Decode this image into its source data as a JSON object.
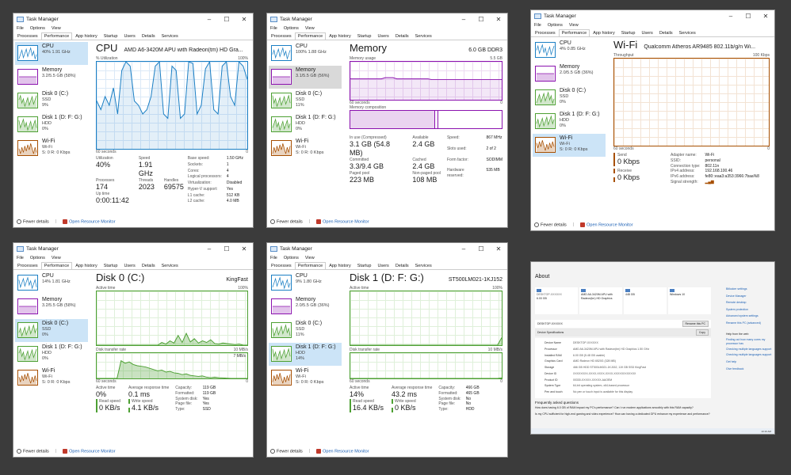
{
  "common": {
    "title": "Task Manager",
    "menu": [
      "File",
      "Options",
      "View"
    ],
    "tabs": [
      "Processes",
      "Performance",
      "App history",
      "Startup",
      "Users",
      "Details",
      "Services"
    ],
    "fewer_details": "Fewer details",
    "open_rm": "Open Resource Monitor",
    "minimize": "–",
    "maximize": "☐",
    "close": "✕"
  },
  "windows": {
    "cpu": {
      "sidebar": [
        {
          "name": "CPU",
          "d1": "40%  1.91 GHz",
          "d2": ""
        },
        {
          "name": "Memory",
          "d1": "3.2/5.5 GB (58%)",
          "d2": ""
        },
        {
          "name": "Disk 0 (C:)",
          "d1": "SSD",
          "d2": "9%"
        },
        {
          "name": "Disk 1 (D: F: G:)",
          "d1": "HDD",
          "d2": "0%"
        },
        {
          "name": "Wi-Fi",
          "d1": "Wi-Fi",
          "d2": "S: 0  R: 0 Kbps"
        }
      ],
      "heading": "CPU",
      "subtitle": "AMD A6-3420M APU with Radeon(tm) HD Gra...",
      "graph_top_left": "% Utilization",
      "graph_top_right": "100%",
      "graph_bottom_left": "60 seconds",
      "graph_bottom_right": "0",
      "stats": [
        {
          "l": "Utilization",
          "v": "40%"
        },
        {
          "l": "Speed",
          "v": "1.91 GHz"
        },
        {
          "l": "Processes",
          "v": "174"
        },
        {
          "l": "Threads",
          "v": "2023"
        },
        {
          "l": "Handles",
          "v": "69575"
        },
        {
          "l": "Up time",
          "v": "0:00:11:42"
        }
      ],
      "details": [
        [
          "Base speed:",
          "1.50 GHz"
        ],
        [
          "Sockets:",
          "1"
        ],
        [
          "Cores:",
          "4"
        ],
        [
          "Logical processors:",
          "4"
        ],
        [
          "Virtualization:",
          "Disabled"
        ],
        [
          "Hyper-V support:",
          "Yes"
        ],
        [
          "L1 cache:",
          "512 KB"
        ],
        [
          "L2 cache:",
          "4.0 MB"
        ]
      ]
    },
    "mem": {
      "sidebar": [
        {
          "name": "CPU",
          "d1": "100%  1.88 GHz",
          "d2": ""
        },
        {
          "name": "Memory",
          "d1": "3.1/5.5 GB (56%)",
          "d2": ""
        },
        {
          "name": "Disk 0 (C:)",
          "d1": "SSD",
          "d2": "11%"
        },
        {
          "name": "Disk 1 (D: F: G:)",
          "d1": "HDD",
          "d2": "0%"
        },
        {
          "name": "Wi-Fi",
          "d1": "Wi-Fi",
          "d2": "S: 0  R: 0 Kbps"
        }
      ],
      "heading": "Memory",
      "subtitle": "6.0 GB DDR3",
      "usage_label": "Memory usage",
      "usage_max": "5.5 GB",
      "seconds": "60 seconds",
      "zero": "0",
      "composition": "Memory composition",
      "stats": [
        {
          "l": "In use (Compressed)",
          "v": "3.1 GB (54.8 MB)"
        },
        {
          "l": "Available",
          "v": "2.4 GB"
        },
        {
          "l": "Committed",
          "v": "3.3/9.4 GB"
        },
        {
          "l": "Cached",
          "v": "2.4 GB"
        },
        {
          "l": "Paged pool",
          "v": "223 MB"
        },
        {
          "l": "Non-paged pool",
          "v": "108 MB"
        }
      ],
      "details": [
        [
          "Speed:",
          "867 MHz"
        ],
        [
          "Slots used:",
          "2 of 2"
        ],
        [
          "Form factor:",
          "SODIMM"
        ],
        [
          "Hardware reserved:",
          "535 MB"
        ]
      ]
    },
    "wifi": {
      "sidebar": [
        {
          "name": "CPU",
          "d1": "4%  0.85 GHz",
          "d2": ""
        },
        {
          "name": "Memory",
          "d1": "2.0/5.5 GB (36%)",
          "d2": ""
        },
        {
          "name": "Disk 0 (C:)",
          "d1": "SSD",
          "d2": "0%"
        },
        {
          "name": "Disk 1 (D: F: G:)",
          "d1": "HDD",
          "d2": "0%"
        },
        {
          "name": "Wi-Fi",
          "d1": "Wi-Fi",
          "d2": "S: 0  R: 0 Kbps"
        }
      ],
      "heading": "Wi-Fi",
      "subtitle": "Qualcomm Atheros AR9485 802.11b/g/n Wi...",
      "graph_top_left": "Throughput",
      "graph_top_right": "100 Kbps",
      "seconds": "60 seconds",
      "zero": "0",
      "send_label": "Send",
      "send_value": "0 Kbps",
      "recv_label": "Receive",
      "recv_value": "0 Kbps",
      "details": [
        [
          "Adapter name:",
          "Wi-Fi"
        ],
        [
          "SSID:",
          "personal"
        ],
        [
          "Connection type:",
          "802.11n"
        ],
        [
          "IPv4 address:",
          "192.168.100.46"
        ],
        [
          "IPv6 address:",
          "fe80::eaa3:a353:3966:7baa%8"
        ],
        [
          "Signal strength:",
          "▂▄▆"
        ]
      ]
    },
    "disk0": {
      "sidebar": [
        {
          "name": "CPU",
          "d1": "14%  1.81 GHz",
          "d2": ""
        },
        {
          "name": "Memory",
          "d1": "3.2/5.5 GB (58%)",
          "d2": ""
        },
        {
          "name": "Disk 0 (C:)",
          "d1": "SSD",
          "d2": "0%"
        },
        {
          "name": "Disk 1 (D: F: G:)",
          "d1": "HDD",
          "d2": "0%"
        },
        {
          "name": "Wi-Fi",
          "d1": "Wi-Fi",
          "d2": "S: 0  R: 0 Kbps"
        }
      ],
      "heading": "Disk 0 (C:)",
      "subtitle": "KingFast",
      "active_label": "Active time",
      "active_max": "100%",
      "rate_label": "Disk transfer rate",
      "rate_max": "10 MB/s",
      "rate_mark": "7 MB/s",
      "seconds": "60 seconds",
      "zero": "0",
      "stats": [
        {
          "l": "Active time",
          "v": "0%"
        },
        {
          "l": "Average response time",
          "v": "0.1 ms"
        },
        {
          "l": "Read speed",
          "v": "0 KB/s"
        },
        {
          "l": "Write speed",
          "v": "4.1 KB/s"
        }
      ],
      "details": [
        [
          "Capacity:",
          "119 GB"
        ],
        [
          "Formatted:",
          "119 GB"
        ],
        [
          "System disk:",
          "Yes"
        ],
        [
          "Page file:",
          "Yes"
        ],
        [
          "Type:",
          "SSD"
        ]
      ]
    },
    "disk1": {
      "sidebar": [
        {
          "name": "CPU",
          "d1": "9%  1.80 GHz",
          "d2": ""
        },
        {
          "name": "Memory",
          "d1": "2.0/5.5 GB (36%)",
          "d2": ""
        },
        {
          "name": "Disk 0 (C:)",
          "d1": "SSD",
          "d2": "11%"
        },
        {
          "name": "Disk 1 (D: F: G:)",
          "d1": "HDD",
          "d2": "14%"
        },
        {
          "name": "Wi-Fi",
          "d1": "Wi-Fi",
          "d2": "S: 0  R: 0 Kbps"
        }
      ],
      "heading": "Disk 1 (D: F: G:)",
      "subtitle": "ST500LM021-1KJ152",
      "active_label": "Active time",
      "active_max": "100%",
      "rate_label": "Disk transfer rate",
      "rate_max": "10 MB/s",
      "seconds": "60 seconds",
      "zero": "0",
      "stats": [
        {
          "l": "Active time",
          "v": "14%"
        },
        {
          "l": "Average response time",
          "v": "43.2 ms"
        },
        {
          "l": "Read speed",
          "v": "16.4 KB/s"
        },
        {
          "l": "Write speed",
          "v": "0 KB/s"
        }
      ],
      "details": [
        [
          "Capacity:",
          "466 GB"
        ],
        [
          "Formatted:",
          "465 GB"
        ],
        [
          "System disk:",
          "No"
        ],
        [
          "Page file:",
          "No"
        ],
        [
          "Type:",
          "HDD"
        ]
      ]
    }
  },
  "about": {
    "title": "About",
    "cards": [
      [
        "DESKTOP-XXXXXX",
        "6.00 GB"
      ],
      [
        "",
        "AMD A6-3420M APU with Radeon(tm) HD Graphics"
      ],
      [
        "",
        "448 GB"
      ],
      [
        "",
        "Windows 10"
      ]
    ],
    "device_name": "DESKTOP-XXXXXX",
    "rename_button": "Rename this PC",
    "device_specs": "Device Specifications",
    "copy_button": "Copy",
    "specs": [
      [
        "Device Name",
        "DESKTOP-XXXXXX"
      ],
      [
        "Processor",
        "AMD A6-3420M APU with Radeon(tm) HD Graphics   1.50 GHz"
      ],
      [
        "Installed RAM",
        "6.00 GB (5.48 GB usable)"
      ],
      [
        "Graphics Card",
        "AMD Radeon HD 6520G (328 MB)"
      ],
      [
        "Storage",
        "466 GB HDD ST500LM021-1KJ152, 119 GB SSD KingFast"
      ],
      [
        "Device ID",
        "XXXXXXXX-XXXX-XXXX-XXXX-XXXXXXXXXXXX"
      ],
      [
        "Product ID",
        "00330-XXXXX-XXXXX-AAOEM"
      ],
      [
        "System Type",
        "64-bit operating system, x64-based processor"
      ],
      [
        "Pen and touch",
        "No pen or touch input is available for this display"
      ]
    ],
    "faq_title": "Frequently asked questions",
    "faq": [
      "How does having 6.0 GB of RAM impact my PC's performance? Can I run modern applications smoothly with this RAM capacity?",
      "Is my CPU sufficient for high-end gaming and video experience? How can having a dedicated GPU enhance my experience and performance?"
    ],
    "links": [
      "Bitlocker settings",
      "Device Manager",
      "Remote desktop",
      "System protection",
      "Advanced system settings",
      "Rename this PC (advanced)"
    ],
    "help_title": "Help from the web",
    "help_links": [
      "Finding out how many cores my processor has",
      "Checking multiple languages support",
      "Checking multiple languages support"
    ],
    "extra_links": [
      "Get help",
      "Give feedback"
    ],
    "clock": "10:16 AM"
  }
}
